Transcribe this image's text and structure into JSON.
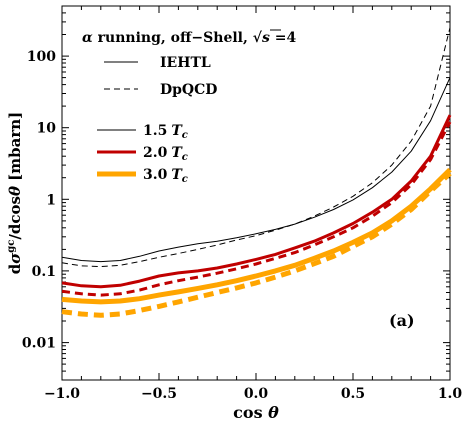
{
  "chart_data": {
    "type": "line",
    "panel_label": "(a)",
    "xlabel": "cos θ",
    "ylabel": "dσ^{gc}/dcosθ [mbarn]",
    "xlim": [
      -1.0,
      1.0
    ],
    "ylim": [
      0.003,
      500
    ],
    "yscale": "log",
    "xticks": [
      {
        "v": -1.0,
        "label": "−1.0"
      },
      {
        "v": -0.5,
        "label": "−0.5"
      },
      {
        "v": 0.0,
        "label": "0.0"
      },
      {
        "v": 0.5,
        "label": "0.5"
      },
      {
        "v": 1.0,
        "label": "1.0"
      }
    ],
    "yticks": [
      {
        "v": 0.01,
        "label": "0.01"
      },
      {
        "v": 0.1,
        "label": "0.1"
      },
      {
        "v": 1,
        "label": "1"
      },
      {
        "v": 10,
        "label": "10"
      },
      {
        "v": 100,
        "label": "100"
      }
    ],
    "legend_header": {
      "alpha": "α",
      "text": " running, off−Shell, ",
      "sqrt": "√",
      "s": "s",
      "eq": " =4"
    },
    "style_legend": [
      {
        "label": "IEHTL",
        "dash": "solid"
      },
      {
        "label": "DpQCD",
        "dash": "dashed"
      }
    ],
    "temperature_legend": [
      {
        "value": "1.5",
        "unit": "T",
        "sub": "c",
        "color": "#000000",
        "width": 1
      },
      {
        "value": "2.0",
        "unit": "T",
        "sub": "c",
        "color": "#c00000",
        "width": 3
      },
      {
        "value": "3.0",
        "unit": "T",
        "sub": "c",
        "color": "#ffa500",
        "width": 5
      }
    ],
    "series": [
      {
        "temperature": "1.5",
        "model": "IEHTL",
        "color": "#000000",
        "width": 1,
        "dash": "solid",
        "x": [
          -1.0,
          -0.9,
          -0.8,
          -0.7,
          -0.6,
          -0.5,
          -0.4,
          -0.3,
          -0.2,
          -0.1,
          0.0,
          0.1,
          0.2,
          0.3,
          0.4,
          0.5,
          0.6,
          0.7,
          0.8,
          0.9,
          1.0
        ],
        "y": [
          0.155,
          0.14,
          0.135,
          0.14,
          0.16,
          0.19,
          0.215,
          0.24,
          0.26,
          0.29,
          0.33,
          0.38,
          0.45,
          0.56,
          0.72,
          0.98,
          1.45,
          2.4,
          4.7,
          12.5,
          50
        ]
      },
      {
        "temperature": "1.5",
        "model": "DpQCD",
        "color": "#000000",
        "width": 1,
        "dash": "dashed",
        "x": [
          -1.0,
          -0.9,
          -0.8,
          -0.7,
          -0.6,
          -0.5,
          -0.4,
          -0.3,
          -0.2,
          -0.1,
          0.0,
          0.1,
          0.2,
          0.3,
          0.4,
          0.5,
          0.6,
          0.7,
          0.8,
          0.9,
          1.0
        ],
        "y": [
          0.13,
          0.118,
          0.115,
          0.12,
          0.135,
          0.155,
          0.175,
          0.2,
          0.23,
          0.27,
          0.31,
          0.37,
          0.45,
          0.58,
          0.78,
          1.1,
          1.7,
          3.0,
          6.5,
          20,
          250
        ]
      },
      {
        "temperature": "2.0",
        "model": "IEHTL",
        "color": "#c00000",
        "width": 3,
        "dash": "solid",
        "x": [
          -1.0,
          -0.9,
          -0.8,
          -0.7,
          -0.6,
          -0.5,
          -0.4,
          -0.3,
          -0.2,
          -0.1,
          0.0,
          0.1,
          0.2,
          0.3,
          0.4,
          0.5,
          0.6,
          0.7,
          0.8,
          0.9,
          1.0
        ],
        "y": [
          0.068,
          0.062,
          0.06,
          0.063,
          0.072,
          0.085,
          0.094,
          0.1,
          0.11,
          0.125,
          0.145,
          0.17,
          0.21,
          0.26,
          0.34,
          0.46,
          0.66,
          1.0,
          1.8,
          4.0,
          15
        ]
      },
      {
        "temperature": "2.0",
        "model": "DpQCD",
        "color": "#c00000",
        "width": 3,
        "dash": "dashed",
        "x": [
          -1.0,
          -0.9,
          -0.8,
          -0.7,
          -0.6,
          -0.5,
          -0.4,
          -0.3,
          -0.2,
          -0.1,
          0.0,
          0.1,
          0.2,
          0.3,
          0.4,
          0.5,
          0.6,
          0.7,
          0.8,
          0.9,
          1.0
        ],
        "y": [
          0.052,
          0.048,
          0.046,
          0.048,
          0.054,
          0.064,
          0.073,
          0.082,
          0.093,
          0.107,
          0.125,
          0.15,
          0.18,
          0.23,
          0.3,
          0.4,
          0.58,
          0.9,
          1.6,
          3.6,
          12
        ]
      },
      {
        "temperature": "3.0",
        "model": "IEHTL",
        "color": "#ffa500",
        "width": 5,
        "dash": "solid",
        "x": [
          -1.0,
          -0.9,
          -0.8,
          -0.7,
          -0.6,
          -0.5,
          -0.4,
          -0.3,
          -0.2,
          -0.1,
          0.0,
          0.1,
          0.2,
          0.3,
          0.4,
          0.5,
          0.6,
          0.7,
          0.8,
          0.9,
          1.0
        ],
        "y": [
          0.04,
          0.038,
          0.037,
          0.038,
          0.041,
          0.046,
          0.051,
          0.057,
          0.064,
          0.073,
          0.085,
          0.1,
          0.12,
          0.15,
          0.19,
          0.25,
          0.34,
          0.5,
          0.8,
          1.4,
          2.6
        ]
      },
      {
        "temperature": "3.0",
        "model": "DpQCD",
        "color": "#ffa500",
        "width": 5,
        "dash": "dashed",
        "x": [
          -1.0,
          -0.9,
          -0.8,
          -0.7,
          -0.6,
          -0.5,
          -0.4,
          -0.3,
          -0.2,
          -0.1,
          0.0,
          0.1,
          0.2,
          0.3,
          0.4,
          0.5,
          0.6,
          0.7,
          0.8,
          0.9,
          1.0
        ],
        "y": [
          0.027,
          0.025,
          0.024,
          0.025,
          0.028,
          0.032,
          0.037,
          0.043,
          0.05,
          0.058,
          0.068,
          0.082,
          0.1,
          0.126,
          0.16,
          0.22,
          0.3,
          0.45,
          0.72,
          1.3,
          2.3
        ]
      }
    ]
  }
}
